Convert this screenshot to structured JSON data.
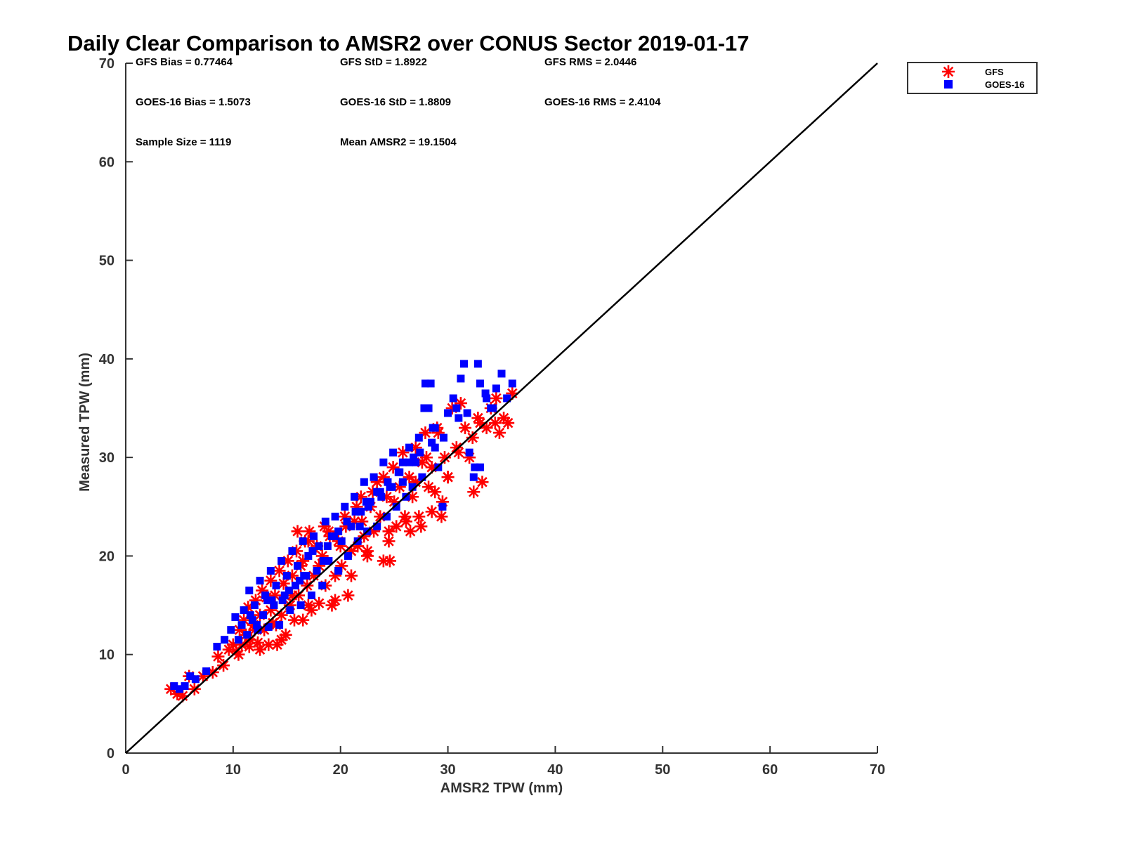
{
  "chart_data": {
    "type": "scatter",
    "title": "Daily Clear Comparison to AMSR2 over CONUS Sector 2019-01-17",
    "xlabel": "AMSR2 TPW (mm)",
    "ylabel": "Measured TPW (mm)",
    "xlim": [
      0,
      70
    ],
    "ylim": [
      0,
      70
    ],
    "xticks": [
      "0",
      "10",
      "20",
      "30",
      "40",
      "50",
      "60",
      "70"
    ],
    "yticks": [
      "0",
      "10",
      "20",
      "30",
      "40",
      "50",
      "60",
      "70"
    ],
    "grid": false,
    "legend_position": "outside-top-right",
    "reference_line": {
      "from": [
        0,
        0
      ],
      "to": [
        70,
        70
      ]
    },
    "annotations": [
      "GFS Bias = 0.77464",
      "GFS StD = 1.8922",
      "GFS RMS = 2.0446",
      "GOES-16 Bias = 1.5073",
      "GOES-16 StD = 1.8809",
      "GOES-16 RMS = 2.4104",
      "Sample Size = 1119",
      "Mean AMSR2 = 19.1504"
    ],
    "series": [
      {
        "name": "GFS",
        "marker": "asterisk",
        "color": "#ff0000",
        "x": [
          4.2,
          4.8,
          5.3,
          5.9,
          6.4,
          7.2,
          8.1,
          8.6,
          9.1,
          9.6,
          10.0,
          10.3,
          10.6,
          10.8,
          11.0,
          11.2,
          11.4,
          11.6,
          11.9,
          12.1,
          12.3,
          12.5,
          12.7,
          12.9,
          13.1,
          13.3,
          13.5,
          13.7,
          13.9,
          14.1,
          14.3,
          14.5,
          14.7,
          14.9,
          15.1,
          15.3,
          15.5,
          15.7,
          15.9,
          16.1,
          16.3,
          16.5,
          16.7,
          16.9,
          17.1,
          17.3,
          17.5,
          17.8,
          18.0,
          18.3,
          18.6,
          18.9,
          19.2,
          19.5,
          19.8,
          20.1,
          20.4,
          20.7,
          21.0,
          21.3,
          21.6,
          21.9,
          22.2,
          22.5,
          22.8,
          23.1,
          23.4,
          23.7,
          24.0,
          24.3,
          24.6,
          24.9,
          25.2,
          25.5,
          25.8,
          26.1,
          26.4,
          26.7,
          27.0,
          27.3,
          27.6,
          27.9,
          28.2,
          28.5,
          28.8,
          29.1,
          29.4,
          29.7,
          30.0,
          30.4,
          30.8,
          31.2,
          31.6,
          32.0,
          32.4,
          32.8,
          33.2,
          33.6,
          34.0,
          34.4,
          34.8,
          35.2,
          35.6,
          36.0,
          12.0,
          13.5,
          14.0,
          15.5,
          16.5,
          17.0,
          18.0,
          19.0,
          20.0,
          20.5,
          21.5,
          22.0,
          23.0,
          24.0,
          24.5,
          25.0,
          26.0,
          27.0,
          28.0,
          29.0,
          30.0,
          31.0,
          32.3,
          33.0,
          34.5,
          16.0,
          17.0,
          18.5,
          21.0,
          22.5,
          24.5,
          26.5,
          27.5,
          28.5,
          29.5,
          12.5,
          14.5,
          19.5,
          11.5,
          10.5
        ],
        "y": [
          6.5,
          6.0,
          5.8,
          7.8,
          6.5,
          7.8,
          8.2,
          9.8,
          8.9,
          10.5,
          11.0,
          10.3,
          12.5,
          11.0,
          13.5,
          12.0,
          14.8,
          11.5,
          13.0,
          15.5,
          11.2,
          14.0,
          16.5,
          12.5,
          15.8,
          11.0,
          17.5,
          13.2,
          16.0,
          11.0,
          18.5,
          14.0,
          17.2,
          12.0,
          19.5,
          15.0,
          18.0,
          13.5,
          20.5,
          16.0,
          19.0,
          13.5,
          21.5,
          17.0,
          22.5,
          14.5,
          18.0,
          21.0,
          15.2,
          20.0,
          17.0,
          22.5,
          15.0,
          18.0,
          21.5,
          19.0,
          24.0,
          16.0,
          20.5,
          23.5,
          21.0,
          26.0,
          22.0,
          20.5,
          25.0,
          22.5,
          27.5,
          24.0,
          19.5,
          26.0,
          19.5,
          29.0,
          23.0,
          27.0,
          30.5,
          23.5,
          28.0,
          26.0,
          31.0,
          24.0,
          29.5,
          32.5,
          27.0,
          29.0,
          26.5,
          32.5,
          24.0,
          30.0,
          28.0,
          35.0,
          31.0,
          35.5,
          33.0,
          30.0,
          26.5,
          34.0,
          27.5,
          33.0,
          35.0,
          33.5,
          32.5,
          34.0,
          33.5,
          36.5,
          12.5,
          14.5,
          13.0,
          16.0,
          19.5,
          15.0,
          19.0,
          22.0,
          21.0,
          23.0,
          25.0,
          23.5,
          26.5,
          28.0,
          22.5,
          25.5,
          24.0,
          27.5,
          30.0,
          33.0,
          28.0,
          30.5,
          32.0,
          33.5,
          36.0,
          22.5,
          21.5,
          23.0,
          18.0,
          20.0,
          21.5,
          22.5,
          23.0,
          24.5,
          25.5,
          10.5,
          11.5,
          15.5,
          10.8,
          10.0
        ]
      },
      {
        "name": "GOES-16",
        "marker": "square",
        "color": "#0000ff",
        "x": [
          4.5,
          5.0,
          5.5,
          6.0,
          6.5,
          7.5,
          8.5,
          9.2,
          9.8,
          10.2,
          10.5,
          10.8,
          11.0,
          11.3,
          11.5,
          11.8,
          12.0,
          12.3,
          12.5,
          12.8,
          13.0,
          13.3,
          13.5,
          13.8,
          14.0,
          14.3,
          14.5,
          14.8,
          15.0,
          15.3,
          15.5,
          15.8,
          16.0,
          16.3,
          16.5,
          16.8,
          17.0,
          17.3,
          17.5,
          17.8,
          18.0,
          18.3,
          18.6,
          18.9,
          19.2,
          19.5,
          19.8,
          20.1,
          20.4,
          20.7,
          21.0,
          21.3,
          21.6,
          21.9,
          22.2,
          22.5,
          22.8,
          23.1,
          23.4,
          23.7,
          24.0,
          24.3,
          24.6,
          24.9,
          25.2,
          25.5,
          25.8,
          26.1,
          26.4,
          26.7,
          27.0,
          27.3,
          27.6,
          27.9,
          28.2,
          28.5,
          28.8,
          29.1,
          29.5,
          30.0,
          30.5,
          31.0,
          31.5,
          32.0,
          32.5,
          33.0,
          33.5,
          34.0,
          34.5,
          35.0,
          35.5,
          36.0,
          30.8,
          31.2,
          32.8,
          33.6,
          27.8,
          28.4,
          32.4,
          33.0,
          12.2,
          13.6,
          15.2,
          16.6,
          17.4,
          18.4,
          19.4,
          20.6,
          21.4,
          22.4,
          23.4,
          24.4,
          25.4,
          26.4,
          27.4,
          28.6,
          29.6,
          14.6,
          16.2,
          18.8,
          21.8,
          23.8,
          25.8,
          11.6,
          13.2,
          19.8,
          22.6,
          24.8,
          26.8,
          28.8,
          31.8,
          34.2
        ],
        "y": [
          6.8,
          6.5,
          6.8,
          7.8,
          7.5,
          8.3,
          10.8,
          11.5,
          12.5,
          13.8,
          11.5,
          13.0,
          14.5,
          12.0,
          16.5,
          13.5,
          15.0,
          12.5,
          17.5,
          14.0,
          16.0,
          12.8,
          18.5,
          15.0,
          17.0,
          13.0,
          19.5,
          16.0,
          18.0,
          14.5,
          20.5,
          17.0,
          19.0,
          15.0,
          21.5,
          18.0,
          20.0,
          16.0,
          22.0,
          18.5,
          21.0,
          17.0,
          23.5,
          19.5,
          22.0,
          24.0,
          18.5,
          21.5,
          25.0,
          20.0,
          23.0,
          26.0,
          21.5,
          24.5,
          27.5,
          22.5,
          25.5,
          28.0,
          23.0,
          26.5,
          29.5,
          24.0,
          27.0,
          30.5,
          25.0,
          28.5,
          29.5,
          26.0,
          31.0,
          27.0,
          29.5,
          32.0,
          28.0,
          37.5,
          35.0,
          31.5,
          33.0,
          29.0,
          25.0,
          34.5,
          36.0,
          34.0,
          39.5,
          30.5,
          29.0,
          37.5,
          36.5,
          35.0,
          37.0,
          38.5,
          36.0,
          37.5,
          35.0,
          38.0,
          39.5,
          36.0,
          35.0,
          37.5,
          28.0,
          29.0,
          13.0,
          15.5,
          16.5,
          18.0,
          20.5,
          19.5,
          22.0,
          23.5,
          24.5,
          25.5,
          26.5,
          27.5,
          28.5,
          29.5,
          30.5,
          33.0,
          32.0,
          15.5,
          17.5,
          21.0,
          23.0,
          26.0,
          27.5,
          14.0,
          15.5,
          22.5,
          25.0,
          27.0,
          30.0,
          31.0,
          34.5,
          35.0
        ]
      }
    ]
  }
}
